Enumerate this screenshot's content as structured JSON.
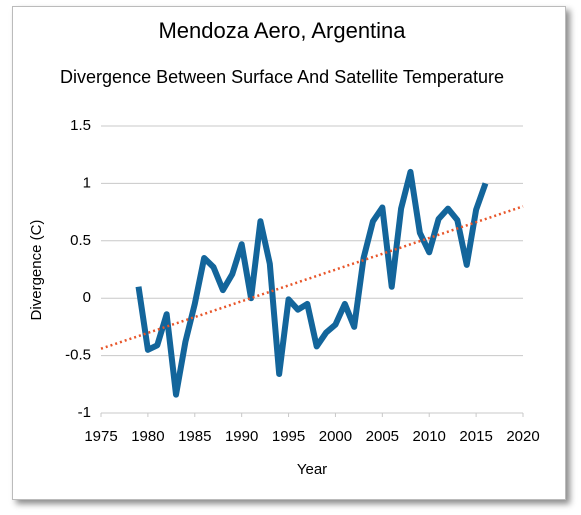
{
  "chart_data": {
    "type": "line",
    "title": "Mendoza Aero, Argentina",
    "subtitle": "Divergence Between Surface And Satellite Temperature",
    "x_label": "Year",
    "y_label": "Divergence (C)",
    "xlim": [
      1975,
      2020
    ],
    "xticks": [
      1975,
      1980,
      1985,
      1990,
      1995,
      2000,
      2005,
      2010,
      2015,
      2020
    ],
    "ylim": [
      -1,
      1.5
    ],
    "yticks": [
      -1,
      -0.5,
      0,
      0.5,
      1,
      1.5
    ],
    "grid": true,
    "series": [
      {
        "color": "#13659b",
        "style": "solid",
        "x": [
          1979,
          1980,
          1981,
          1982,
          1983,
          1984,
          1985,
          1986,
          1987,
          1988,
          1989,
          1990,
          1991,
          1992,
          1993,
          1994,
          1995,
          1996,
          1997,
          1998,
          1999,
          2000,
          2001,
          2002,
          2003,
          2004,
          2005,
          2006,
          2007,
          2008,
          2009,
          2010,
          2011,
          2012,
          2013,
          2014,
          2015,
          2016
        ],
        "values": [
          0.1,
          -0.45,
          -0.41,
          -0.14,
          -0.84,
          -0.38,
          -0.05,
          0.35,
          0.27,
          0.07,
          0.21,
          0.47,
          0.0,
          0.67,
          0.3,
          -0.66,
          -0.01,
          -0.1,
          -0.05,
          -0.42,
          -0.3,
          -0.23,
          -0.05,
          -0.25,
          0.35,
          0.67,
          0.79,
          0.1,
          0.78,
          1.1,
          0.57,
          0.4,
          0.69,
          0.78,
          0.68,
          0.29,
          0.77,
          1.0
        ]
      },
      {
        "color": "#e8562a",
        "style": "dotted",
        "x": [
          1975,
          2020
        ],
        "values": [
          -0.44,
          0.8
        ]
      }
    ]
  }
}
